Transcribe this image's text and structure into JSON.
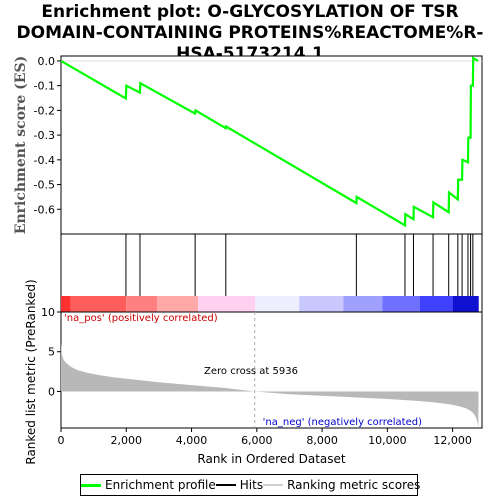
{
  "title": "Enrichment plot: O-GLYCOSYLATION OF TSR DOMAIN-CONTAINING PROTEINS%REACTOME%R-HSA-5173214.1",
  "chart_data": [
    {
      "type": "line",
      "panel": "enrichment-profile",
      "ylabel": "Enrichment score (ES)",
      "xlim": [
        0,
        12900
      ],
      "ylim": [
        -0.7,
        0.02
      ],
      "yticks": [
        0.0,
        -0.1,
        -0.2,
        -0.3,
        -0.4,
        -0.5,
        -0.6
      ],
      "ytick_labels": [
        "0.0",
        "-0.1",
        "-0.2",
        "-0.3",
        "-0.4",
        "-0.5",
        "-0.6"
      ],
      "color": "#00ff00",
      "series": [
        {
          "name": "Enrichment profile",
          "x": [
            0,
            1990,
            2000,
            2420,
            2430,
            4110,
            4120,
            5050,
            5060,
            9050,
            9060,
            10540,
            10550,
            10800,
            10810,
            11400,
            11410,
            11880,
            11890,
            12160,
            12170,
            12290,
            12300,
            12470,
            12480,
            12550,
            12560,
            12620,
            12630,
            12780
          ],
          "y": [
            0.0,
            -0.152,
            -0.1,
            -0.128,
            -0.09,
            -0.213,
            -0.2,
            -0.272,
            -0.265,
            -0.575,
            -0.55,
            -0.665,
            -0.62,
            -0.64,
            -0.59,
            -0.632,
            -0.572,
            -0.612,
            -0.532,
            -0.56,
            -0.48,
            -0.48,
            -0.4,
            -0.41,
            -0.31,
            -0.31,
            -0.1,
            -0.1,
            0.012,
            0.0
          ]
        }
      ]
    },
    {
      "type": "scatter",
      "panel": "hits",
      "name": "Hits",
      "hit_positions": [
        1990,
        2420,
        4110,
        5050,
        9050,
        10540,
        10800,
        11400,
        11880,
        12160,
        12290,
        12470,
        12550,
        12620
      ],
      "color_bar": {
        "stops": [
          "#ff3030",
          "#ff5c5c",
          "#ff8080",
          "#ffa8a8",
          "#ffd0f0",
          "#eeeeff",
          "#c8c8ff",
          "#a0a0ff",
          "#7070ff",
          "#4040ff",
          "#1010d0"
        ],
        "boundaries": [
          0,
          300,
          2000,
          2950,
          4200,
          5950,
          7300,
          8650,
          9850,
          11000,
          12000,
          12800
        ]
      }
    },
    {
      "type": "area",
      "panel": "ranked-list",
      "name": "Ranking metric scores",
      "xlabel": "Rank in Ordered Dataset",
      "ylabel": "Ranked list metric (PreRanked)",
      "xlim": [
        0,
        12900
      ],
      "ylim": [
        -4.6,
        10
      ],
      "xticks": [
        0,
        2000,
        4000,
        6000,
        8000,
        10000,
        12000
      ],
      "xtick_labels": [
        "0",
        "2,000",
        "4,000",
        "6,000",
        "8,000",
        "10,000",
        "12,000"
      ],
      "yticks": [
        10,
        5,
        0
      ],
      "ytick_labels": [
        "10",
        "5",
        "0"
      ],
      "color": "#b8b8b8",
      "x": [
        0,
        30,
        80,
        150,
        300,
        500,
        800,
        1200,
        1600,
        2000,
        3000,
        4000,
        5000,
        5936,
        7000,
        8000,
        9000,
        10000,
        10800,
        11400,
        11900,
        12200,
        12400,
        12550,
        12650,
        12720,
        12760,
        12790
      ],
      "y": [
        6.2,
        4.6,
        4.0,
        3.6,
        3.1,
        2.7,
        2.35,
        2.05,
        1.8,
        1.6,
        1.15,
        0.8,
        0.45,
        0.0,
        -0.35,
        -0.55,
        -0.75,
        -0.95,
        -1.15,
        -1.35,
        -1.6,
        -1.85,
        -2.1,
        -2.45,
        -2.8,
        -3.3,
        -3.9,
        -4.5
      ],
      "annotations": {
        "zero_cross": "Zero cross at 5936",
        "pos_label": "'na_pos' (positively correlated)",
        "neg_label": "'na_neg' (negatively correlated)"
      }
    }
  ],
  "legend": {
    "items": [
      {
        "label": "Enrichment profile",
        "color": "#00ff00"
      },
      {
        "label": "Hits",
        "color": "#000000"
      },
      {
        "label": "Ranking metric scores",
        "color": "#d0d0d0"
      }
    ]
  },
  "colors": {
    "pos_text": "#cc0000",
    "neg_text": "#0000cc",
    "zero_line": "#aaaaaa"
  }
}
